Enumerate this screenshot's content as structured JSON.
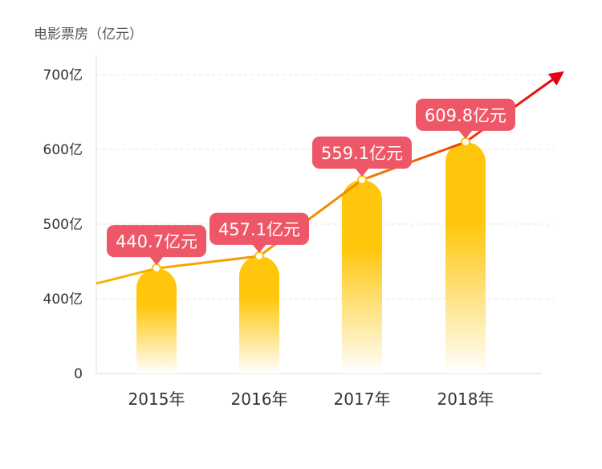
{
  "chart_data": {
    "type": "bar",
    "title": "电影票房（亿元）",
    "categories": [
      "2015年",
      "2016年",
      "2017年",
      "2018年"
    ],
    "values": [
      440.7,
      457.1,
      559.1,
      609.8
    ],
    "data_labels": [
      "440.7亿元",
      "457.1亿元",
      "559.1亿元",
      "609.8亿元"
    ],
    "y_ticks": [
      {
        "value": 0,
        "label": "0"
      },
      {
        "value": 400,
        "label": "400亿"
      },
      {
        "value": 500,
        "label": "500亿"
      },
      {
        "value": 600,
        "label": "600亿"
      },
      {
        "value": 700,
        "label": "700亿"
      }
    ],
    "axis_break": true,
    "grid": true,
    "trend_arrow": true,
    "colors": {
      "bar_top": "#FFC60B",
      "bar_bottom": "#FFFFFF",
      "label_bg": "#EE5768",
      "label_text": "#FFFFFF",
      "trend_start": "#F7B500",
      "trend_end": "#E60012",
      "grid": "#E3E3E3",
      "axis": "#DDDDDD",
      "tick_text": "#333333"
    }
  }
}
